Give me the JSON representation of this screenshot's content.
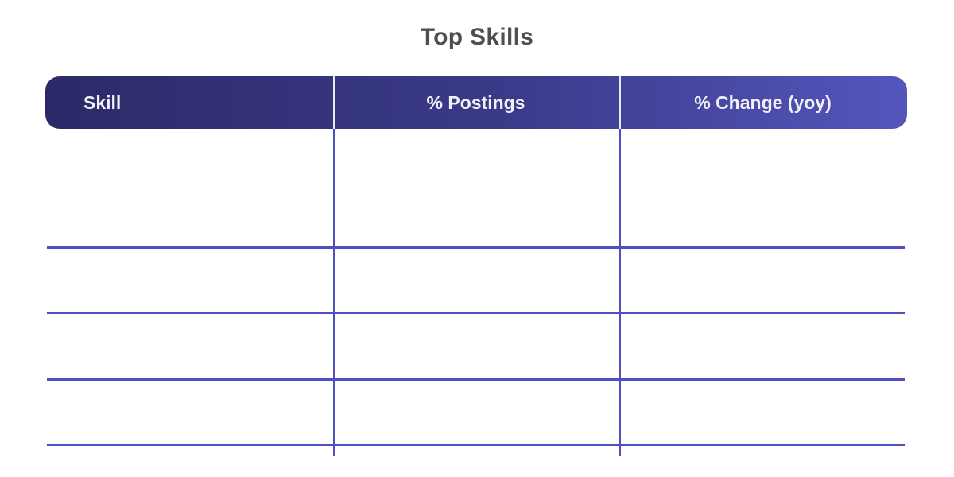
{
  "title": "Top Skills",
  "table": {
    "columns": [
      {
        "label": "Skill",
        "align": "left"
      },
      {
        "label": "% Postings",
        "align": "center"
      },
      {
        "label": "% Change (yoy)",
        "align": "center"
      }
    ],
    "rows": [
      [
        "",
        "",
        ""
      ],
      [
        "",
        "",
        ""
      ],
      [
        "",
        "",
        ""
      ],
      [
        "",
        "",
        ""
      ],
      [
        "",
        "",
        ""
      ]
    ]
  },
  "colors": {
    "background": "#ffffff",
    "title_text": "#4f4f4f",
    "header_gradient_start": "#2b2a67",
    "header_gradient_end": "#5456bc",
    "header_text": "#f2f1fa",
    "header_divider": "#e9e9f4",
    "grid_line": "#4f4ec2"
  },
  "chart_data": {
    "type": "table",
    "title": "Top Skills",
    "columns": [
      "Skill",
      "% Postings",
      "% Change (yoy)"
    ],
    "rows": [
      [
        "",
        "",
        ""
      ],
      [
        "",
        "",
        ""
      ],
      [
        "",
        "",
        ""
      ],
      [
        "",
        "",
        ""
      ],
      [
        "",
        "",
        ""
      ]
    ],
    "layout": {
      "column_count": 3,
      "row_count": 5,
      "header_style": "horizontal indigo gradient bar, rounded corners",
      "body_style": "empty grid, indigo separator lines, no outer border"
    }
  }
}
